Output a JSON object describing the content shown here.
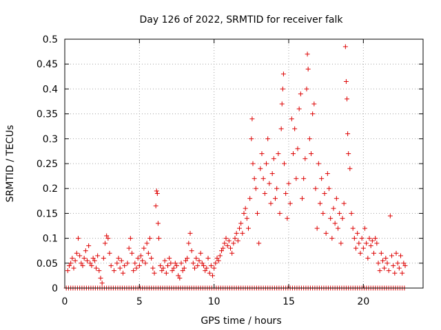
{
  "chart_data": {
    "type": "scatter",
    "title": "Day 126 of 2022, SRMTID for receiver falk",
    "xlabel": "GPS time / hours",
    "ylabel": "SRMTID / TECUs",
    "xlim": [
      0,
      24
    ],
    "ylim": [
      0,
      0.5
    ],
    "xticks": [
      "0",
      "5",
      "10",
      "15",
      "20"
    ],
    "xtick_values": [
      0,
      5,
      10,
      15,
      20
    ],
    "yticks": [
      "0",
      "0.05",
      "0.1",
      "0.15",
      "0.2",
      "0.25",
      "0.3",
      "0.35",
      "0.4",
      "0.45",
      "0.5"
    ],
    "ytick_values": [
      0,
      0.05,
      0.1,
      0.15,
      0.2,
      0.25,
      0.3,
      0.35,
      0.4,
      0.45,
      0.5
    ],
    "grid": true,
    "marker": "+",
    "color": "#dd0000",
    "zero_band": {
      "x_start": 0.1,
      "x_end": 22.8,
      "step": 0.15,
      "y": 0
    },
    "series": [
      {
        "name": "SRMTID",
        "points": [
          [
            0.2,
            0.035
          ],
          [
            0.3,
            0.045
          ],
          [
            0.4,
            0.05
          ],
          [
            0.5,
            0.06
          ],
          [
            0.6,
            0.04
          ],
          [
            0.7,
            0.055
          ],
          [
            0.8,
            0.07
          ],
          [
            0.9,
            0.1
          ],
          [
            1.0,
            0.065
          ],
          [
            1.1,
            0.05
          ],
          [
            1.2,
            0.045
          ],
          [
            1.3,
            0.06
          ],
          [
            1.4,
            0.075
          ],
          [
            1.5,
            0.055
          ],
          [
            1.6,
            0.085
          ],
          [
            1.7,
            0.05
          ],
          [
            1.8,
            0.045
          ],
          [
            1.9,
            0.06
          ],
          [
            2.0,
            0.055
          ],
          [
            2.1,
            0.04
          ],
          [
            2.2,
            0.065
          ],
          [
            2.3,
            0.035
          ],
          [
            2.4,
            0.02
          ],
          [
            2.5,
            0.01
          ],
          [
            2.6,
            0.06
          ],
          [
            2.7,
            0.09
          ],
          [
            2.8,
            0.105
          ],
          [
            2.9,
            0.1
          ],
          [
            3.0,
            0.07
          ],
          [
            3.1,
            0.045
          ],
          [
            3.3,
            0.035
          ],
          [
            3.5,
            0.05
          ],
          [
            3.6,
            0.06
          ],
          [
            3.7,
            0.04
          ],
          [
            3.8,
            0.055
          ],
          [
            3.9,
            0.03
          ],
          [
            4.0,
            0.045
          ],
          [
            4.2,
            0.05
          ],
          [
            4.3,
            0.08
          ],
          [
            4.4,
            0.1
          ],
          [
            4.5,
            0.07
          ],
          [
            4.6,
            0.035
          ],
          [
            4.7,
            0.05
          ],
          [
            4.8,
            0.04
          ],
          [
            4.9,
            0.06
          ],
          [
            5.0,
            0.045
          ],
          [
            5.1,
            0.065
          ],
          [
            5.2,
            0.055
          ],
          [
            5.3,
            0.08
          ],
          [
            5.4,
            0.05
          ],
          [
            5.5,
            0.09
          ],
          [
            5.6,
            0.07
          ],
          [
            5.7,
            0.1
          ],
          [
            5.8,
            0.06
          ],
          [
            5.9,
            0.04
          ],
          [
            6.0,
            0.03
          ],
          [
            6.1,
            0.165
          ],
          [
            6.15,
            0.195
          ],
          [
            6.2,
            0.19
          ],
          [
            6.25,
            0.13
          ],
          [
            6.3,
            0.1
          ],
          [
            6.4,
            0.045
          ],
          [
            6.5,
            0.035
          ],
          [
            6.6,
            0.04
          ],
          [
            6.7,
            0.055
          ],
          [
            6.8,
            0.03
          ],
          [
            6.9,
            0.045
          ],
          [
            7.0,
            0.06
          ],
          [
            7.1,
            0.05
          ],
          [
            7.2,
            0.035
          ],
          [
            7.3,
            0.04
          ],
          [
            7.4,
            0.05
          ],
          [
            7.5,
            0.045
          ],
          [
            7.6,
            0.025
          ],
          [
            7.7,
            0.02
          ],
          [
            7.8,
            0.05
          ],
          [
            7.9,
            0.035
          ],
          [
            8.0,
            0.04
          ],
          [
            8.1,
            0.055
          ],
          [
            8.2,
            0.06
          ],
          [
            8.3,
            0.09
          ],
          [
            8.4,
            0.11
          ],
          [
            8.5,
            0.075
          ],
          [
            8.6,
            0.05
          ],
          [
            8.7,
            0.04
          ],
          [
            8.8,
            0.06
          ],
          [
            8.9,
            0.045
          ],
          [
            9.0,
            0.055
          ],
          [
            9.1,
            0.07
          ],
          [
            9.2,
            0.05
          ],
          [
            9.3,
            0.045
          ],
          [
            9.4,
            0.035
          ],
          [
            9.5,
            0.04
          ],
          [
            9.6,
            0.06
          ],
          [
            9.7,
            0.03
          ],
          [
            9.8,
            0.045
          ],
          [
            9.9,
            0.025
          ],
          [
            10.0,
            0.04
          ],
          [
            10.1,
            0.05
          ],
          [
            10.2,
            0.06
          ],
          [
            10.3,
            0.055
          ],
          [
            10.4,
            0.065
          ],
          [
            10.5,
            0.075
          ],
          [
            10.6,
            0.08
          ],
          [
            10.7,
            0.09
          ],
          [
            10.8,
            0.1
          ],
          [
            10.9,
            0.085
          ],
          [
            11.0,
            0.095
          ],
          [
            11.1,
            0.08
          ],
          [
            11.2,
            0.07
          ],
          [
            11.3,
            0.09
          ],
          [
            11.4,
            0.1
          ],
          [
            11.5,
            0.11
          ],
          [
            11.6,
            0.095
          ],
          [
            11.7,
            0.12
          ],
          [
            11.8,
            0.13
          ],
          [
            11.9,
            0.11
          ],
          [
            12.0,
            0.15
          ],
          [
            12.1,
            0.16
          ],
          [
            12.2,
            0.14
          ],
          [
            12.3,
            0.12
          ],
          [
            12.4,
            0.18
          ],
          [
            12.5,
            0.3
          ],
          [
            12.55,
            0.34
          ],
          [
            12.6,
            0.25
          ],
          [
            12.7,
            0.22
          ],
          [
            12.8,
            0.2
          ],
          [
            12.9,
            0.15
          ],
          [
            13.0,
            0.09
          ],
          [
            13.1,
            0.24
          ],
          [
            13.2,
            0.27
          ],
          [
            13.3,
            0.22
          ],
          [
            13.4,
            0.19
          ],
          [
            13.5,
            0.25
          ],
          [
            13.6,
            0.3
          ],
          [
            13.7,
            0.21
          ],
          [
            13.8,
            0.17
          ],
          [
            13.9,
            0.23
          ],
          [
            14.0,
            0.26
          ],
          [
            14.1,
            0.18
          ],
          [
            14.2,
            0.2
          ],
          [
            14.3,
            0.27
          ],
          [
            14.4,
            0.15
          ],
          [
            14.5,
            0.32
          ],
          [
            14.55,
            0.37
          ],
          [
            14.6,
            0.4
          ],
          [
            14.65,
            0.43
          ],
          [
            14.7,
            0.25
          ],
          [
            14.8,
            0.19
          ],
          [
            14.9,
            0.14
          ],
          [
            15.0,
            0.21
          ],
          [
            15.1,
            0.17
          ],
          [
            15.2,
            0.34
          ],
          [
            15.3,
            0.27
          ],
          [
            15.4,
            0.32
          ],
          [
            15.5,
            0.22
          ],
          [
            15.6,
            0.28
          ],
          [
            15.7,
            0.36
          ],
          [
            15.8,
            0.39
          ],
          [
            15.9,
            0.18
          ],
          [
            16.0,
            0.22
          ],
          [
            16.1,
            0.26
          ],
          [
            16.2,
            0.4
          ],
          [
            16.25,
            0.47
          ],
          [
            16.3,
            0.44
          ],
          [
            16.4,
            0.3
          ],
          [
            16.5,
            0.27
          ],
          [
            16.6,
            0.35
          ],
          [
            16.7,
            0.37
          ],
          [
            16.8,
            0.2
          ],
          [
            16.9,
            0.12
          ],
          [
            17.0,
            0.25
          ],
          [
            17.1,
            0.17
          ],
          [
            17.2,
            0.22
          ],
          [
            17.3,
            0.15
          ],
          [
            17.4,
            0.19
          ],
          [
            17.5,
            0.11
          ],
          [
            17.6,
            0.23
          ],
          [
            17.7,
            0.2
          ],
          [
            17.8,
            0.14
          ],
          [
            17.9,
            0.1
          ],
          [
            18.0,
            0.16
          ],
          [
            18.1,
            0.13
          ],
          [
            18.2,
            0.18
          ],
          [
            18.3,
            0.12
          ],
          [
            18.4,
            0.15
          ],
          [
            18.5,
            0.09
          ],
          [
            18.6,
            0.14
          ],
          [
            18.7,
            0.17
          ],
          [
            18.8,
            0.485
          ],
          [
            18.85,
            0.415
          ],
          [
            18.9,
            0.38
          ],
          [
            18.95,
            0.31
          ],
          [
            19.0,
            0.27
          ],
          [
            19.1,
            0.24
          ],
          [
            19.2,
            0.15
          ],
          [
            19.3,
            0.12
          ],
          [
            19.4,
            0.1
          ],
          [
            19.5,
            0.08
          ],
          [
            19.6,
            0.11
          ],
          [
            19.7,
            0.09
          ],
          [
            19.8,
            0.07
          ],
          [
            19.9,
            0.1
          ],
          [
            20.0,
            0.08
          ],
          [
            20.1,
            0.12
          ],
          [
            20.2,
            0.09
          ],
          [
            20.3,
            0.06
          ],
          [
            20.4,
            0.1
          ],
          [
            20.5,
            0.085
          ],
          [
            20.6,
            0.095
          ],
          [
            20.7,
            0.07
          ],
          [
            20.8,
            0.1
          ],
          [
            20.9,
            0.09
          ],
          [
            21.0,
            0.05
          ],
          [
            21.1,
            0.035
          ],
          [
            21.2,
            0.07
          ],
          [
            21.3,
            0.055
          ],
          [
            21.4,
            0.04
          ],
          [
            21.5,
            0.06
          ],
          [
            21.6,
            0.05
          ],
          [
            21.7,
            0.035
          ],
          [
            21.8,
            0.145
          ],
          [
            21.9,
            0.065
          ],
          [
            22.0,
            0.045
          ],
          [
            22.1,
            0.03
          ],
          [
            22.2,
            0.07
          ],
          [
            22.3,
            0.05
          ],
          [
            22.4,
            0.04
          ],
          [
            22.5,
            0.065
          ],
          [
            22.6,
            0.03
          ],
          [
            22.7,
            0.05
          ],
          [
            22.8,
            0.045
          ]
        ]
      }
    ]
  }
}
